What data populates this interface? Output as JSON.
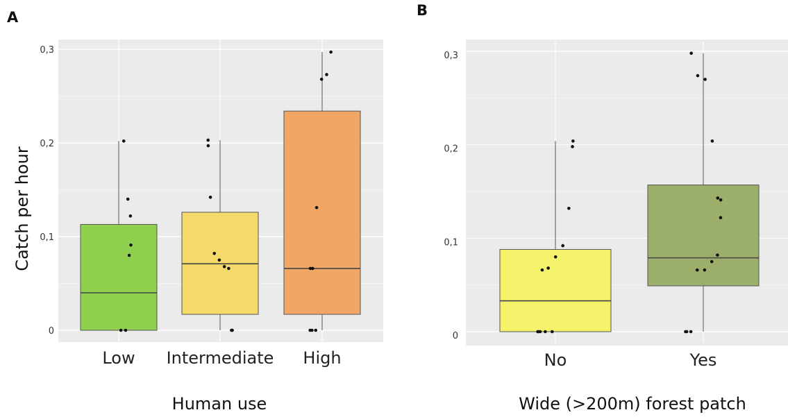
{
  "chart_data": [
    {
      "type": "box",
      "panel_label": "A",
      "xlabel": "Human use",
      "ylabel": "Catch per hour",
      "ylim": [
        0,
        0.3
      ],
      "yticks": [
        {
          "v": 0,
          "label": "0"
        },
        {
          "v": 0.1,
          "label": "0,1"
        },
        {
          "v": 0.2,
          "label": "0,2"
        },
        {
          "v": 0.3,
          "label": "0,3"
        }
      ],
      "grid": true,
      "categories": [
        "Low",
        "Intermediate",
        "High"
      ],
      "boxes": [
        {
          "category": "Low",
          "q1": 0.0,
          "median": 0.04,
          "q3": 0.113,
          "whisker_low": 0.0,
          "whisker_high": 0.202,
          "fill": "#8fd14f",
          "points": [
            0.202,
            0.14,
            0.122,
            0.091,
            0.08,
            0.0,
            0.0
          ]
        },
        {
          "category": "Intermediate",
          "q1": 0.017,
          "median": 0.071,
          "q3": 0.126,
          "whisker_low": 0.0,
          "whisker_high": 0.203,
          "fill": "#f5d96b",
          "points": [
            0.203,
            0.197,
            0.142,
            0.082,
            0.075,
            0.068,
            0.066,
            0.0,
            0.0
          ]
        },
        {
          "category": "High",
          "q1": 0.017,
          "median": 0.066,
          "q3": 0.234,
          "whisker_low": 0.0,
          "whisker_high": 0.297,
          "fill": "#f0a766",
          "points": [
            0.297,
            0.273,
            0.268,
            0.131,
            0.066,
            0.066,
            0.0,
            0.0,
            0.0
          ]
        }
      ]
    },
    {
      "type": "box",
      "panel_label": "B",
      "xlabel": "Wide (>200m) forest patch",
      "ylabel": "",
      "ylim": [
        0,
        0.3
      ],
      "yticks": [
        {
          "v": 0,
          "label": "0"
        },
        {
          "v": 0.1,
          "label": "0,1"
        },
        {
          "v": 0.2,
          "label": "0,2"
        },
        {
          "v": 0.3,
          "label": "0,3"
        }
      ],
      "grid": true,
      "categories": [
        "No",
        "Yes"
      ],
      "boxes": [
        {
          "category": "No",
          "q1": 0.0,
          "median": 0.033,
          "q3": 0.088,
          "whisker_low": 0.0,
          "whisker_high": 0.204,
          "fill": "#f5f26c",
          "points": [
            0.204,
            0.198,
            0.132,
            0.092,
            0.08,
            0.068,
            0.066,
            0.0,
            0.0,
            0.0,
            0.0,
            0.0
          ]
        },
        {
          "category": "Yes",
          "q1": 0.049,
          "median": 0.079,
          "q3": 0.157,
          "whisker_low": 0.0,
          "whisker_high": 0.298,
          "fill": "#9caf6a",
          "points": [
            0.298,
            0.274,
            0.27,
            0.204,
            0.143,
            0.141,
            0.122,
            0.082,
            0.075,
            0.066,
            0.066,
            0.0,
            0.0,
            0.0
          ]
        }
      ]
    }
  ]
}
